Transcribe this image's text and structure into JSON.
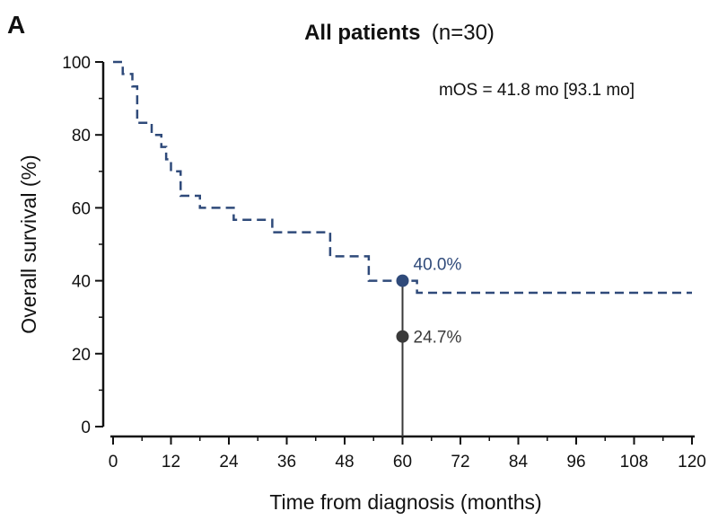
{
  "panel_label": "A",
  "colors": {
    "curve": "#2f4a7a",
    "marker_primary": "#2f4a7a",
    "marker_secondary": "#3a3a3a",
    "axis": "#111111"
  },
  "chart_data": {
    "type": "line",
    "title": "All patients",
    "subtitle": "(n=30)",
    "xlabel": "Time from diagnosis (months)",
    "ylabel": "Overall survival (%)",
    "xlim": [
      0,
      120
    ],
    "ylim": [
      0,
      100
    ],
    "xticks": [
      0,
      12,
      24,
      36,
      48,
      60,
      72,
      84,
      96,
      108,
      120
    ],
    "yticks": [
      0,
      20,
      40,
      60,
      80,
      100
    ],
    "grid": false,
    "legend": "none",
    "annotation": "mOS = 41.8 mo [93.1 mo]",
    "series": [
      {
        "style": "dashed-step",
        "x": [
          0,
          2,
          4,
          5,
          8,
          10,
          11,
          12,
          14,
          18,
          25,
          33,
          45,
          53,
          63,
          120
        ],
        "y": [
          100,
          96.7,
          93.3,
          83.3,
          80,
          76.7,
          73.3,
          70,
          63.3,
          60,
          56.7,
          53.3,
          46.7,
          40,
          36.7,
          36.7
        ]
      }
    ],
    "reference_line": {
      "x": 60
    },
    "highlight_points": [
      {
        "x": 60,
        "y": 40.0,
        "label": "40.0%",
        "role": "primary"
      },
      {
        "x": 60,
        "y": 24.7,
        "label": "24.7%",
        "role": "secondary"
      }
    ]
  }
}
